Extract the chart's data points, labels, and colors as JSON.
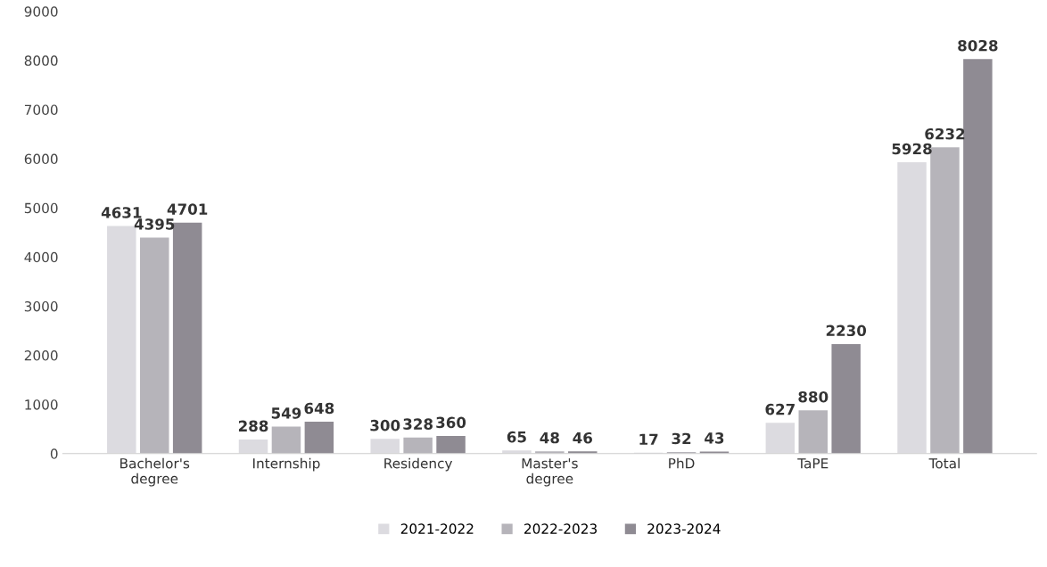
{
  "chart_data": {
    "type": "bar",
    "categories": [
      "Bachelor's\ndegree",
      "Internship",
      "Residency",
      "Master's\ndegree",
      "PhD",
      "TaPE",
      "Total"
    ],
    "series": [
      {
        "name": "2021-2022",
        "color": "#dcdbe0",
        "values": [
          4631,
          288,
          300,
          65,
          17,
          627,
          5928
        ]
      },
      {
        "name": "2022-2023",
        "color": "#b6b4ba",
        "values": [
          4395,
          549,
          328,
          48,
          32,
          880,
          6232
        ]
      },
      {
        "name": "2023-2024",
        "color": "#8f8b93",
        "values": [
          4701,
          648,
          360,
          46,
          43,
          2230,
          8028
        ]
      }
    ],
    "ylim": [
      0,
      9000
    ],
    "yticks": [
      0,
      1000,
      2000,
      3000,
      4000,
      5000,
      6000,
      7000,
      8000,
      9000
    ],
    "data_labels": true,
    "grid": false,
    "legend": "bottom"
  }
}
